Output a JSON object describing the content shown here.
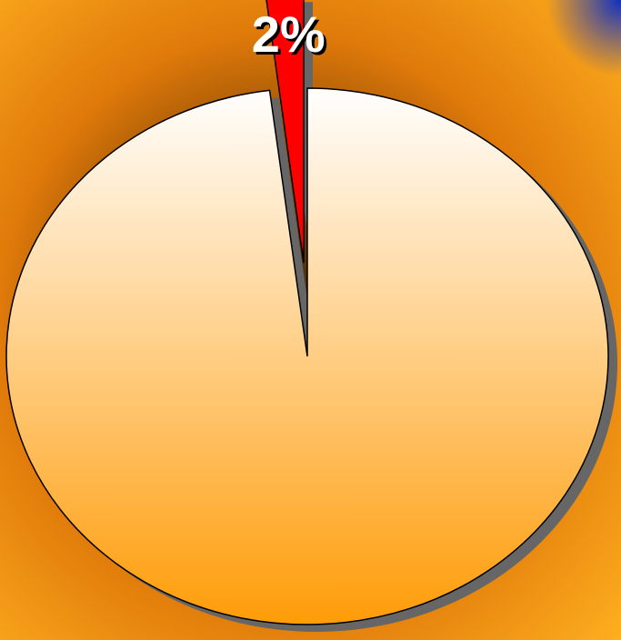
{
  "chart_data": {
    "type": "pie",
    "values": [
      98,
      2
    ],
    "value_labels": [
      null,
      "2%"
    ],
    "colors": [
      "#ffa010",
      "#ff0000"
    ],
    "start_angle": 0,
    "exploded": [
      false,
      true
    ]
  }
}
